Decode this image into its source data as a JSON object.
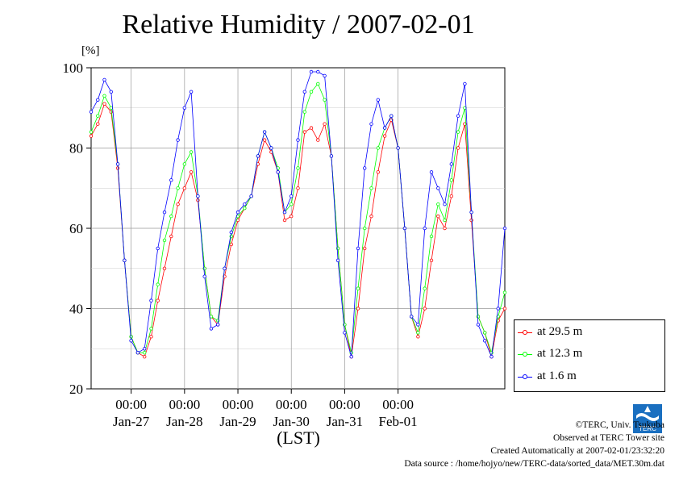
{
  "title": "Relative Humidity / 2007-02-01",
  "credits": {
    "copyright": "©TERC, Univ. Tsukuba",
    "observed": "Observed at TERC Tower site",
    "created": "Created Automatically at 2007-02-01/23:32:20",
    "source": "Data source : /home/hojyo/new/TERC-data/sorted_data/MET.30m.dat"
  },
  "logo_text": "TERC",
  "chart_data": {
    "type": "line",
    "title": "Relative Humidity / 2007-02-01",
    "ylabel": "[%]",
    "xlabel": "(LST)",
    "ylim": [
      20,
      100
    ],
    "yticks": [
      20,
      40,
      60,
      80,
      100
    ],
    "xlim_days": [
      "2007-01-26T06:00",
      "2007-02-01T23:30"
    ],
    "xticks": [
      {
        "time": "00:00",
        "date": "Jan-27"
      },
      {
        "time": "00:00",
        "date": "Jan-28"
      },
      {
        "time": "00:00",
        "date": "Jan-29"
      },
      {
        "time": "00:00",
        "date": "Jan-30"
      },
      {
        "time": "00:00",
        "date": "Jan-31"
      },
      {
        "time": "00:00",
        "date": "Feb-01"
      }
    ],
    "grid": true,
    "legend_position": "lower-right outside",
    "series": [
      {
        "name": "at 29.5 m",
        "color": "#ff0000",
        "points": [
          [
            "01-26 06:00",
            83
          ],
          [
            "01-26 09:00",
            86
          ],
          [
            "01-26 12:00",
            91
          ],
          [
            "01-26 15:00",
            89
          ],
          [
            "01-26 18:00",
            75
          ],
          [
            "01-26 21:00",
            52
          ],
          [
            "01-27 00:00",
            33
          ],
          [
            "01-27 03:00",
            29
          ],
          [
            "01-27 06:00",
            28
          ],
          [
            "01-27 09:00",
            33
          ],
          [
            "01-27 12:00",
            42
          ],
          [
            "01-27 15:00",
            50
          ],
          [
            "01-27 18:00",
            58
          ],
          [
            "01-27 21:00",
            66
          ],
          [
            "01-28 00:00",
            70
          ],
          [
            "01-28 03:00",
            74
          ],
          [
            "01-28 06:00",
            67
          ],
          [
            "01-28 09:00",
            50
          ],
          [
            "01-28 12:00",
            38
          ],
          [
            "01-28 15:00",
            36
          ],
          [
            "01-28 18:00",
            48
          ],
          [
            "01-28 21:00",
            56
          ],
          [
            "01-29 00:00",
            62
          ],
          [
            "01-29 03:00",
            65
          ],
          [
            "01-29 06:00",
            68
          ],
          [
            "01-29 09:00",
            76
          ],
          [
            "01-29 12:00",
            82
          ],
          [
            "01-29 15:00",
            79
          ],
          [
            "01-29 18:00",
            74
          ],
          [
            "01-29 21:00",
            62
          ],
          [
            "01-30 00:00",
            63
          ],
          [
            "01-30 03:00",
            70
          ],
          [
            "01-30 06:00",
            84
          ],
          [
            "01-30 09:00",
            85
          ],
          [
            "01-30 12:00",
            82
          ],
          [
            "01-30 15:00",
            86
          ],
          [
            "01-30 18:00",
            78
          ],
          [
            "01-30 21:00",
            55
          ],
          [
            "01-31 00:00",
            36
          ],
          [
            "01-31 03:00",
            28
          ],
          [
            "01-31 06:00",
            40
          ],
          [
            "01-31 09:00",
            55
          ],
          [
            "01-31 12:00",
            63
          ],
          [
            "01-31 15:00",
            74
          ],
          [
            "01-31 18:00",
            83
          ],
          [
            "01-31 21:00",
            87
          ],
          [
            "02-01 00:00",
            80
          ],
          [
            "02-01 03:00",
            60
          ],
          [
            "02-01 06:00",
            38
          ],
          [
            "02-01 09:00",
            33
          ],
          [
            "02-01 12:00",
            40
          ],
          [
            "02-01 15:00",
            52
          ],
          [
            "02-01 18:00",
            63
          ],
          [
            "02-01 21:00",
            60
          ],
          [
            "02-02 00:00",
            68
          ],
          [
            "02-02 03:00",
            80
          ],
          [
            "02-02 06:00",
            86
          ],
          [
            "02-02 09:00",
            62
          ],
          [
            "02-02 12:00",
            38
          ],
          [
            "02-02 15:00",
            34
          ],
          [
            "02-02 18:00",
            28
          ],
          [
            "02-02 21:00",
            37
          ],
          [
            "02-03 00:00",
            40
          ]
        ]
      },
      {
        "name": "at 12.3 m",
        "color": "#00ff00",
        "points": [
          [
            "01-26 06:00",
            84
          ],
          [
            "01-26 09:00",
            88
          ],
          [
            "01-26 12:00",
            93
          ],
          [
            "01-26 15:00",
            90
          ],
          [
            "01-26 18:00",
            76
          ],
          [
            "01-26 21:00",
            52
          ],
          [
            "01-27 00:00",
            33
          ],
          [
            "01-27 03:00",
            29
          ],
          [
            "01-27 06:00",
            29
          ],
          [
            "01-27 09:00",
            35
          ],
          [
            "01-27 12:00",
            46
          ],
          [
            "01-27 15:00",
            57
          ],
          [
            "01-27 18:00",
            63
          ],
          [
            "01-27 21:00",
            70
          ],
          [
            "01-28 00:00",
            76
          ],
          [
            "01-28 03:00",
            79
          ],
          [
            "01-28 06:00",
            68
          ],
          [
            "01-28 09:00",
            50
          ],
          [
            "01-28 12:00",
            38
          ],
          [
            "01-28 15:00",
            37
          ],
          [
            "01-28 18:00",
            50
          ],
          [
            "01-28 21:00",
            58
          ],
          [
            "01-29 00:00",
            63
          ],
          [
            "01-29 03:00",
            65
          ],
          [
            "01-29 06:00",
            68
          ],
          [
            "01-29 09:00",
            78
          ],
          [
            "01-29 12:00",
            84
          ],
          [
            "01-29 15:00",
            80
          ],
          [
            "01-29 18:00",
            75
          ],
          [
            "01-29 21:00",
            64
          ],
          [
            "01-30 00:00",
            66
          ],
          [
            "01-30 03:00",
            75
          ],
          [
            "01-30 06:00",
            89
          ],
          [
            "01-30 09:00",
            94
          ],
          [
            "01-30 12:00",
            96
          ],
          [
            "01-30 15:00",
            92
          ],
          [
            "01-30 18:00",
            78
          ],
          [
            "01-30 21:00",
            55
          ],
          [
            "01-31 00:00",
            36
          ],
          [
            "01-31 03:00",
            29
          ],
          [
            "01-31 06:00",
            45
          ],
          [
            "01-31 09:00",
            60
          ],
          [
            "01-31 12:00",
            70
          ],
          [
            "01-31 15:00",
            80
          ],
          [
            "01-31 18:00",
            85
          ],
          [
            "01-31 21:00",
            88
          ],
          [
            "02-01 00:00",
            80
          ],
          [
            "02-01 03:00",
            60
          ],
          [
            "02-01 06:00",
            38
          ],
          [
            "02-01 09:00",
            34
          ],
          [
            "02-01 12:00",
            45
          ],
          [
            "02-01 15:00",
            58
          ],
          [
            "02-01 18:00",
            66
          ],
          [
            "02-01 21:00",
            62
          ],
          [
            "02-02 00:00",
            72
          ],
          [
            "02-02 03:00",
            84
          ],
          [
            "02-02 06:00",
            90
          ],
          [
            "02-02 09:00",
            64
          ],
          [
            "02-02 12:00",
            38
          ],
          [
            "02-02 15:00",
            34
          ],
          [
            "02-02 18:00",
            29
          ],
          [
            "02-02 21:00",
            38
          ],
          [
            "02-03 00:00",
            44
          ]
        ]
      },
      {
        "name": "at 1.6 m",
        "color": "#0000ff",
        "points": [
          [
            "01-26 06:00",
            89
          ],
          [
            "01-26 09:00",
            92
          ],
          [
            "01-26 12:00",
            97
          ],
          [
            "01-26 15:00",
            94
          ],
          [
            "01-26 18:00",
            76
          ],
          [
            "01-26 21:00",
            52
          ],
          [
            "01-27 00:00",
            32
          ],
          [
            "01-27 03:00",
            29
          ],
          [
            "01-27 06:00",
            30
          ],
          [
            "01-27 09:00",
            42
          ],
          [
            "01-27 12:00",
            55
          ],
          [
            "01-27 15:00",
            64
          ],
          [
            "01-27 18:00",
            72
          ],
          [
            "01-27 21:00",
            82
          ],
          [
            "01-28 00:00",
            90
          ],
          [
            "01-28 03:00",
            94
          ],
          [
            "01-28 06:00",
            68
          ],
          [
            "01-28 09:00",
            48
          ],
          [
            "01-28 12:00",
            35
          ],
          [
            "01-28 15:00",
            36
          ],
          [
            "01-28 18:00",
            50
          ],
          [
            "01-28 21:00",
            59
          ],
          [
            "01-29 00:00",
            64
          ],
          [
            "01-29 03:00",
            66
          ],
          [
            "01-29 06:00",
            68
          ],
          [
            "01-29 09:00",
            78
          ],
          [
            "01-29 12:00",
            84
          ],
          [
            "01-29 15:00",
            80
          ],
          [
            "01-29 18:00",
            74
          ],
          [
            "01-29 21:00",
            64
          ],
          [
            "01-30 00:00",
            68
          ],
          [
            "01-30 03:00",
            82
          ],
          [
            "01-30 06:00",
            94
          ],
          [
            "01-30 09:00",
            99
          ],
          [
            "01-30 12:00",
            99
          ],
          [
            "01-30 15:00",
            98
          ],
          [
            "01-30 18:00",
            78
          ],
          [
            "01-30 21:00",
            52
          ],
          [
            "01-31 00:00",
            34
          ],
          [
            "01-31 03:00",
            28
          ],
          [
            "01-31 06:00",
            55
          ],
          [
            "01-31 09:00",
            75
          ],
          [
            "01-31 12:00",
            86
          ],
          [
            "01-31 15:00",
            92
          ],
          [
            "01-31 18:00",
            85
          ],
          [
            "01-31 21:00",
            88
          ],
          [
            "02-01 00:00",
            80
          ],
          [
            "02-01 03:00",
            60
          ],
          [
            "02-01 06:00",
            38
          ],
          [
            "02-01 09:00",
            36
          ],
          [
            "02-01 12:00",
            60
          ],
          [
            "02-01 15:00",
            74
          ],
          [
            "02-01 18:00",
            70
          ],
          [
            "02-01 21:00",
            66
          ],
          [
            "02-02 00:00",
            76
          ],
          [
            "02-02 03:00",
            88
          ],
          [
            "02-02 06:00",
            96
          ],
          [
            "02-02 09:00",
            64
          ],
          [
            "02-02 12:00",
            36
          ],
          [
            "02-02 15:00",
            32
          ],
          [
            "02-02 18:00",
            28
          ],
          [
            "02-02 21:00",
            40
          ],
          [
            "02-03 00:00",
            60
          ]
        ]
      }
    ]
  }
}
